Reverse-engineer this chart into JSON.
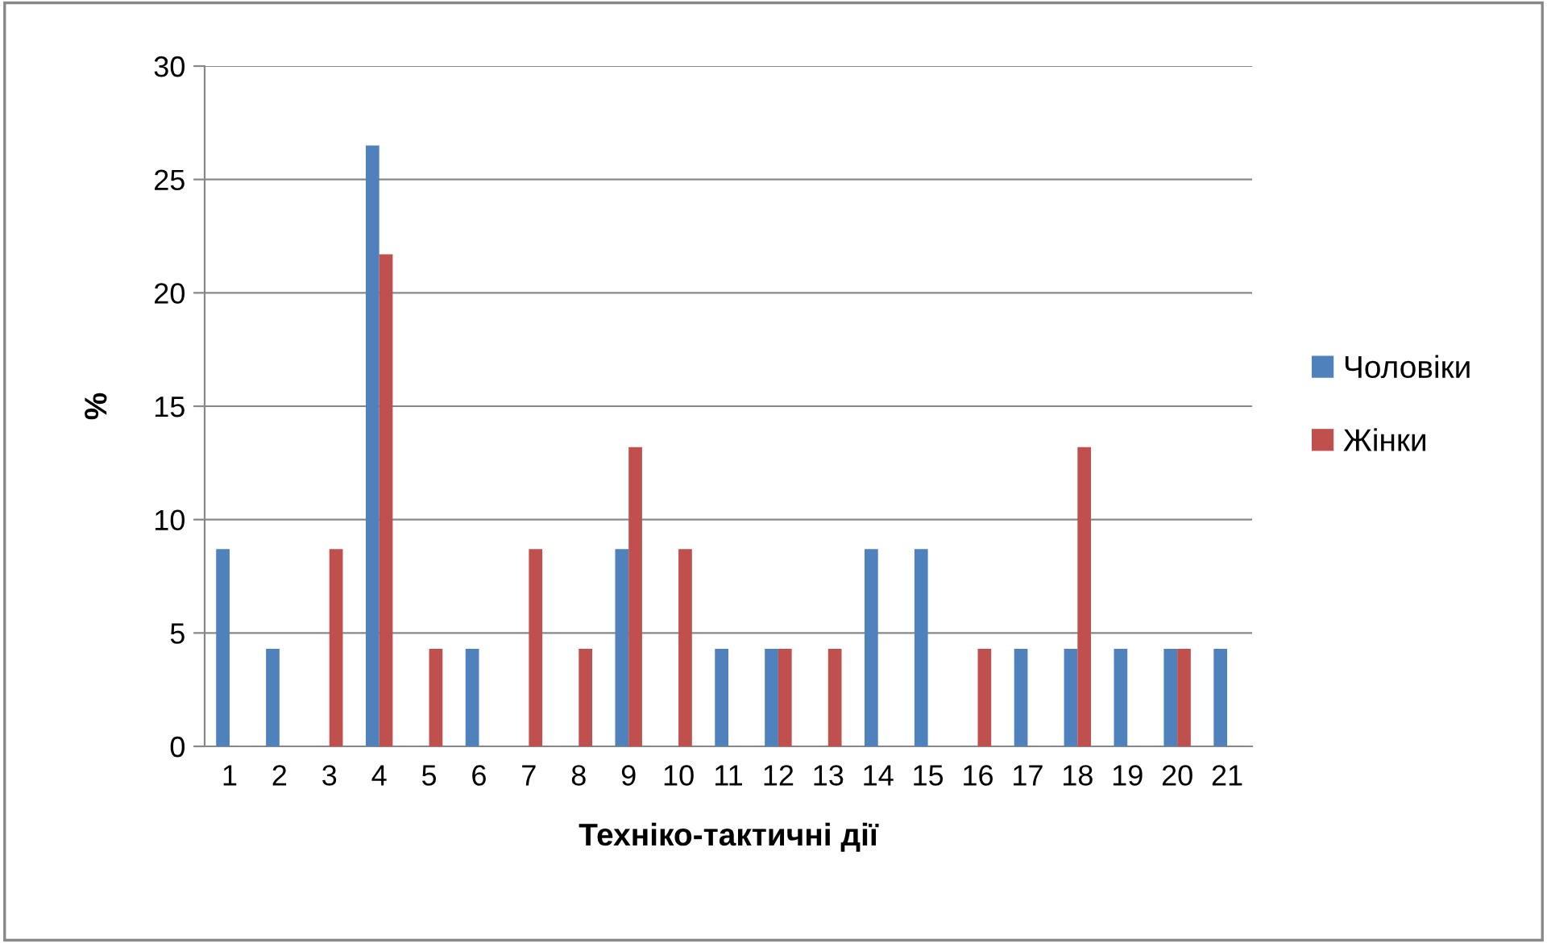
{
  "chart_data": {
    "type": "bar",
    "xlabel": "Техніко-тактичні дії",
    "ylabel": "%",
    "categories": [
      "1",
      "2",
      "3",
      "4",
      "5",
      "6",
      "7",
      "8",
      "9",
      "10",
      "11",
      "12",
      "13",
      "14",
      "15",
      "16",
      "17",
      "18",
      "19",
      "20",
      "21"
    ],
    "series": [
      {
        "name": "Чоловіки",
        "color": "#4f81bd",
        "values": [
          8.7,
          4.3,
          0,
          26.5,
          0,
          4.3,
          0,
          0,
          8.7,
          0,
          4.3,
          4.3,
          0,
          8.7,
          8.7,
          0,
          4.3,
          4.3,
          4.3,
          4.3,
          4.3
        ]
      },
      {
        "name": "Жінки",
        "color": "#c0504d",
        "values": [
          0,
          0,
          8.7,
          21.7,
          4.3,
          0,
          8.7,
          4.3,
          13.2,
          8.7,
          0,
          4.3,
          4.3,
          0,
          0,
          4.3,
          0,
          13.2,
          0,
          4.3,
          0
        ]
      }
    ],
    "ylim": [
      0,
      30
    ],
    "yticks": [
      0,
      5,
      10,
      15,
      20,
      25,
      30
    ],
    "grid": "y",
    "legend": "right"
  }
}
